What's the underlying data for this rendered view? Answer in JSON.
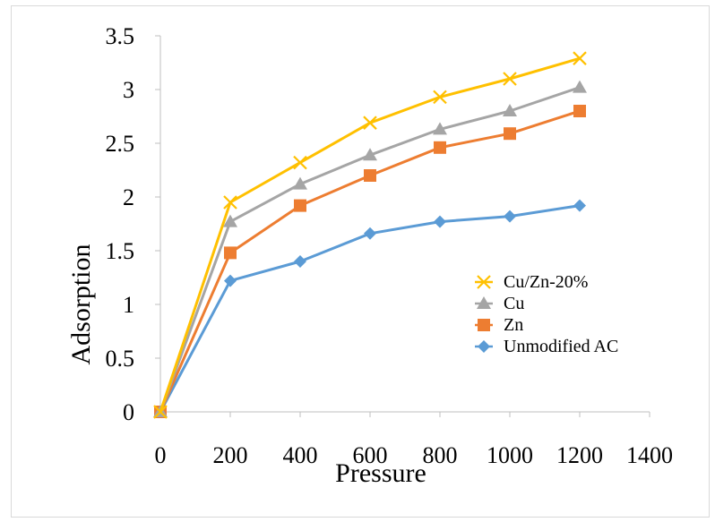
{
  "chart_data": {
    "type": "line",
    "title": "",
    "xlabel": "Pressure",
    "ylabel": "Adsorption",
    "xlim": [
      0,
      1400
    ],
    "ylim": [
      0,
      3.5
    ],
    "x_ticks": [
      "0",
      "200",
      "400",
      "600",
      "800",
      "1000",
      "1200",
      "1400"
    ],
    "y_ticks": [
      "0",
      "0.5",
      "1",
      "1.5",
      "2",
      "2.5",
      "3",
      "3.5"
    ],
    "x": [
      0,
      200,
      400,
      600,
      800,
      1000,
      1200
    ],
    "grid": false,
    "legend_position": "right",
    "series": [
      {
        "name": "Cu/Zn-20%",
        "color": "#FFC000",
        "marker": "x",
        "values": [
          0,
          1.95,
          2.32,
          2.69,
          2.93,
          3.1,
          3.29
        ]
      },
      {
        "name": "Cu",
        "color": "#A5A5A5",
        "marker": "triangle",
        "values": [
          0,
          1.77,
          2.12,
          2.39,
          2.63,
          2.8,
          3.02
        ]
      },
      {
        "name": "Zn",
        "color": "#ED7D31",
        "marker": "square",
        "values": [
          0,
          1.48,
          1.92,
          2.2,
          2.46,
          2.59,
          2.8
        ]
      },
      {
        "name": "Unmodified AC",
        "color": "#5B9BD5",
        "marker": "diamond",
        "values": [
          0,
          1.22,
          1.4,
          1.66,
          1.77,
          1.82,
          1.92
        ]
      }
    ]
  }
}
